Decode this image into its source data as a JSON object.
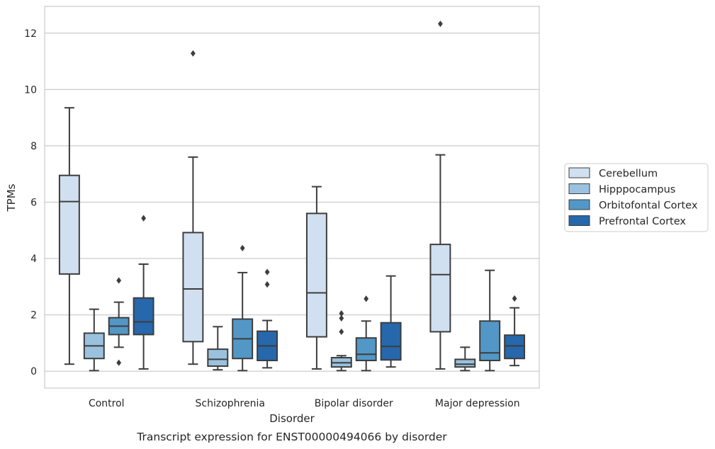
{
  "chart_data": {
    "type": "box",
    "caption": "Transcript expression for ENST00000494066 by disorder",
    "xlabel": "Disorder",
    "ylabel": "TPMs",
    "ylim": [
      -0.6,
      12.95
    ],
    "yticks": [
      0,
      2,
      4,
      6,
      8,
      10,
      12
    ],
    "grid": true,
    "legend_position": "right",
    "categories": [
      "Control",
      "Schizophrenia",
      "Bipolar disorder",
      "Major depression"
    ],
    "series": [
      {
        "name": "Cerebellum",
        "color": "#d1e0f0",
        "boxes": [
          {
            "whisker_low": 0.25,
            "q1": 3.45,
            "median": 6.02,
            "q3": 6.95,
            "whisker_high": 9.35,
            "outliers": []
          },
          {
            "whisker_low": 0.25,
            "q1": 1.05,
            "median": 2.92,
            "q3": 4.92,
            "whisker_high": 7.6,
            "outliers": [
              11.28
            ]
          },
          {
            "whisker_low": 0.08,
            "q1": 1.22,
            "median": 2.78,
            "q3": 5.6,
            "whisker_high": 6.55,
            "outliers": []
          },
          {
            "whisker_low": 0.08,
            "q1": 1.4,
            "median": 3.43,
            "q3": 4.5,
            "whisker_high": 7.68,
            "outliers": [
              12.33
            ]
          }
        ]
      },
      {
        "name": "Hipppocampus",
        "color": "#9ac2de",
        "boxes": [
          {
            "whisker_low": 0.02,
            "q1": 0.45,
            "median": 0.9,
            "q3": 1.35,
            "whisker_high": 2.2,
            "outliers": []
          },
          {
            "whisker_low": 0.05,
            "q1": 0.18,
            "median": 0.42,
            "q3": 0.78,
            "whisker_high": 1.58,
            "outliers": []
          },
          {
            "whisker_low": 0.02,
            "q1": 0.15,
            "median": 0.3,
            "q3": 0.48,
            "whisker_high": 0.55,
            "outliers": [
              2.05,
              1.88,
              1.4
            ]
          },
          {
            "whisker_low": 0.02,
            "q1": 0.15,
            "median": 0.25,
            "q3": 0.42,
            "whisker_high": 0.85,
            "outliers": []
          }
        ]
      },
      {
        "name": "Orbitofontal Cortex",
        "color": "#5397c7",
        "boxes": [
          {
            "whisker_low": 0.85,
            "q1": 1.3,
            "median": 1.6,
            "q3": 1.9,
            "whisker_high": 2.45,
            "outliers": [
              3.22,
              0.3
            ]
          },
          {
            "whisker_low": 0.02,
            "q1": 0.45,
            "median": 1.15,
            "q3": 1.85,
            "whisker_high": 3.5,
            "outliers": [
              4.37
            ]
          },
          {
            "whisker_low": 0.02,
            "q1": 0.38,
            "median": 0.6,
            "q3": 1.18,
            "whisker_high": 1.78,
            "outliers": [
              2.57
            ]
          },
          {
            "whisker_low": 0.02,
            "q1": 0.38,
            "median": 0.65,
            "q3": 1.78,
            "whisker_high": 3.58,
            "outliers": []
          }
        ]
      },
      {
        "name": "Prefrontal Cortex",
        "color": "#2767ac",
        "boxes": [
          {
            "whisker_low": 0.08,
            "q1": 1.3,
            "median": 1.75,
            "q3": 2.6,
            "whisker_high": 3.8,
            "outliers": [
              5.43
            ]
          },
          {
            "whisker_low": 0.12,
            "q1": 0.38,
            "median": 0.9,
            "q3": 1.42,
            "whisker_high": 1.8,
            "outliers": [
              3.52,
              3.08
            ]
          },
          {
            "whisker_low": 0.15,
            "q1": 0.4,
            "median": 0.88,
            "q3": 1.72,
            "whisker_high": 3.38,
            "outliers": []
          },
          {
            "whisker_low": 0.2,
            "q1": 0.45,
            "median": 0.9,
            "q3": 1.28,
            "whisker_high": 2.25,
            "outliers": [
              2.58
            ]
          }
        ]
      }
    ]
  }
}
